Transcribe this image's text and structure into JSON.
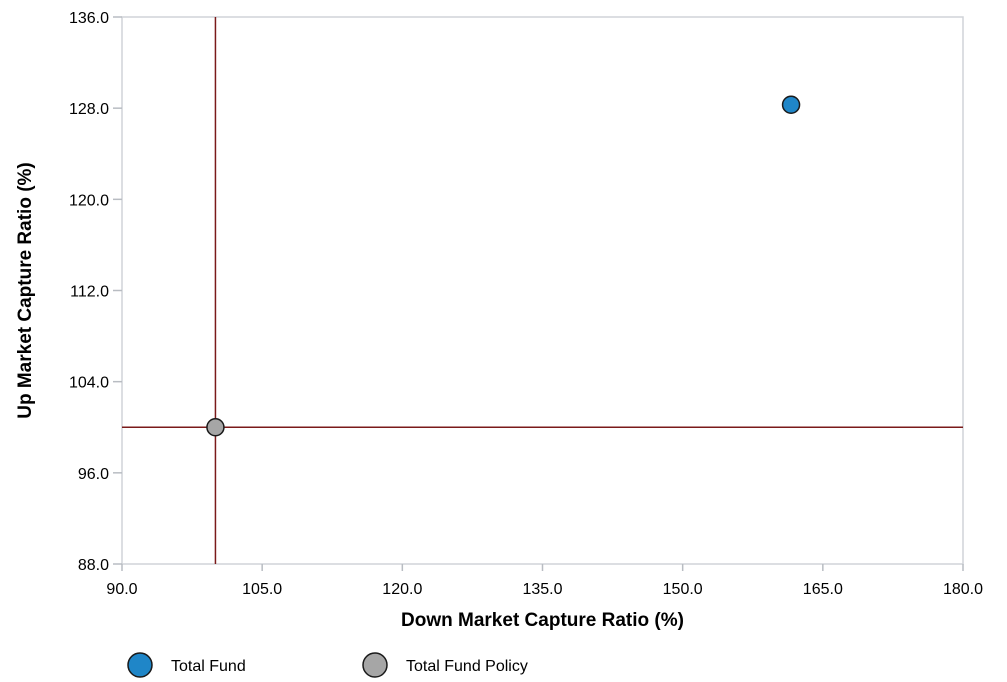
{
  "chart_data": {
    "type": "scatter",
    "xlabel": "Down Market Capture Ratio (%)",
    "ylabel": "Up Market Capture Ratio (%)",
    "xlim": [
      90,
      180
    ],
    "ylim": [
      88,
      136
    ],
    "x_ticks": [
      "90.0",
      "105.0",
      "120.0",
      "135.0",
      "150.0",
      "165.0",
      "180.0"
    ],
    "y_ticks": [
      "88.0",
      "96.0",
      "104.0",
      "112.0",
      "120.0",
      "128.0",
      "136.0"
    ],
    "x_tick_values": [
      90,
      105,
      120,
      135,
      150,
      165,
      180
    ],
    "y_tick_values": [
      88,
      96,
      104,
      112,
      120,
      128,
      136
    ],
    "reference_lines": {
      "x": 100,
      "y": 100,
      "color": "#7a1a1a"
    },
    "grid": false,
    "legend_position": "bottom-left",
    "series": [
      {
        "name": "Total Fund",
        "color": "#1f86c8",
        "points": [
          {
            "x": 161.6,
            "y": 128.3
          }
        ]
      },
      {
        "name": "Total Fund Policy",
        "color": "#a6a6a6",
        "points": [
          {
            "x": 100.0,
            "y": 100.0
          }
        ]
      }
    ]
  }
}
